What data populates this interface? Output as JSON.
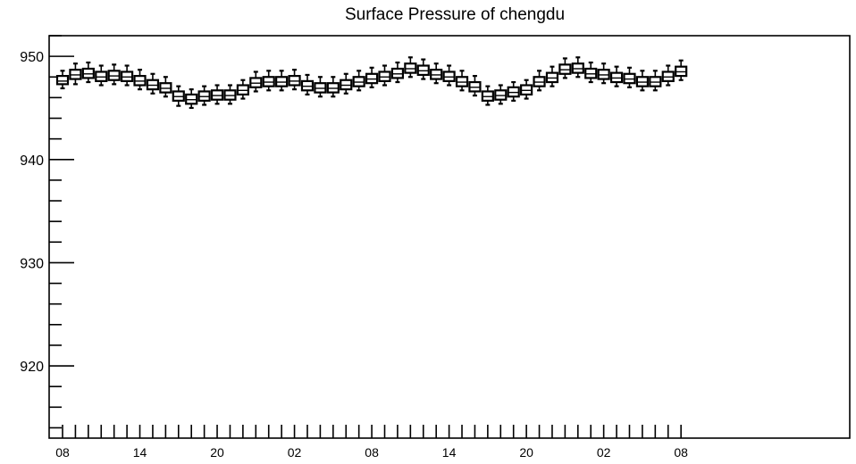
{
  "chart_data": {
    "type": "box",
    "title": "Surface Pressure of chengdu",
    "xlabel": "",
    "ylabel": "",
    "ylim": [
      913,
      952
    ],
    "y_ticks": [
      920,
      930,
      940,
      950
    ],
    "x_tick_labels": [
      "08",
      "14",
      "20",
      "02",
      "08",
      "14",
      "20",
      "02",
      "08"
    ],
    "x": [
      0,
      1,
      2,
      3,
      4,
      5,
      6,
      7,
      8,
      9,
      10,
      11,
      12,
      13,
      14,
      15,
      16,
      17,
      18,
      19,
      20,
      21,
      22,
      23,
      24,
      25,
      26,
      27,
      28,
      29,
      30,
      31,
      32,
      33,
      34,
      35,
      36,
      37,
      38,
      39,
      40,
      41,
      42,
      43,
      44,
      45,
      46,
      47,
      48
    ],
    "series": [
      {
        "median": [
          947.6,
          948.2,
          948.3,
          948.0,
          948.1,
          948.0,
          947.6,
          947.2,
          946.9,
          946.1,
          945.8,
          946.1,
          946.2,
          946.2,
          946.7,
          947.4,
          947.5,
          947.5,
          947.6,
          947.1,
          946.9,
          946.9,
          947.2,
          947.5,
          947.8,
          948.0,
          948.3,
          948.8,
          948.6,
          948.2,
          948.0,
          947.5,
          947.0,
          946.1,
          946.2,
          946.5,
          946.7,
          947.5,
          947.9,
          948.7,
          948.8,
          948.3,
          948.2,
          947.9,
          947.8,
          947.5,
          947.5,
          948.0,
          948.5
        ],
        "q1": [
          947.3,
          947.8,
          947.9,
          947.6,
          947.7,
          947.6,
          947.2,
          946.8,
          946.5,
          945.7,
          945.4,
          945.7,
          945.8,
          945.8,
          946.3,
          947.0,
          947.1,
          947.1,
          947.2,
          946.7,
          946.5,
          946.5,
          946.8,
          947.1,
          947.4,
          947.6,
          947.9,
          948.4,
          948.2,
          947.8,
          947.6,
          947.1,
          946.6,
          945.7,
          945.8,
          946.1,
          946.3,
          947.1,
          947.5,
          948.3,
          948.4,
          947.9,
          947.8,
          947.5,
          947.4,
          947.1,
          947.1,
          947.6,
          948.1
        ],
        "q3": [
          948.1,
          948.7,
          948.8,
          948.5,
          948.6,
          948.5,
          948.1,
          947.7,
          947.4,
          946.6,
          946.3,
          946.6,
          946.7,
          946.7,
          947.2,
          947.9,
          948.0,
          948.0,
          948.1,
          947.6,
          947.4,
          947.4,
          947.7,
          948.0,
          948.3,
          948.5,
          948.8,
          949.3,
          949.1,
          948.7,
          948.5,
          948.0,
          947.5,
          946.6,
          946.7,
          947.0,
          947.2,
          948.0,
          948.4,
          949.2,
          949.3,
          948.8,
          948.7,
          948.4,
          948.3,
          948.0,
          948.0,
          948.5,
          949.0
        ],
        "min": [
          946.9,
          947.3,
          947.5,
          947.2,
          947.3,
          947.2,
          946.8,
          946.4,
          946.1,
          945.2,
          945.0,
          945.3,
          945.4,
          945.4,
          945.9,
          946.6,
          946.7,
          946.7,
          946.8,
          946.3,
          946.1,
          946.1,
          946.4,
          946.7,
          947.0,
          947.2,
          947.5,
          948.0,
          947.8,
          947.4,
          947.2,
          946.7,
          946.2,
          945.3,
          945.4,
          945.7,
          945.9,
          946.7,
          947.1,
          947.9,
          948.0,
          947.5,
          947.4,
          947.1,
          947.0,
          946.7,
          946.7,
          947.2,
          947.7
        ],
        "max": [
          948.6,
          949.3,
          949.4,
          949.1,
          949.2,
          949.1,
          948.7,
          948.3,
          948.0,
          947.1,
          946.8,
          947.1,
          947.2,
          947.2,
          947.7,
          948.5,
          948.6,
          948.6,
          948.7,
          948.2,
          948.0,
          948.0,
          948.3,
          948.6,
          948.9,
          949.1,
          949.4,
          949.9,
          949.7,
          949.3,
          949.1,
          948.6,
          948.1,
          947.1,
          947.2,
          947.5,
          947.7,
          948.6,
          949.0,
          949.8,
          949.9,
          949.4,
          949.3,
          949.0,
          948.9,
          948.6,
          948.6,
          949.1,
          949.6
        ]
      }
    ],
    "grid": false,
    "legend": "none"
  }
}
